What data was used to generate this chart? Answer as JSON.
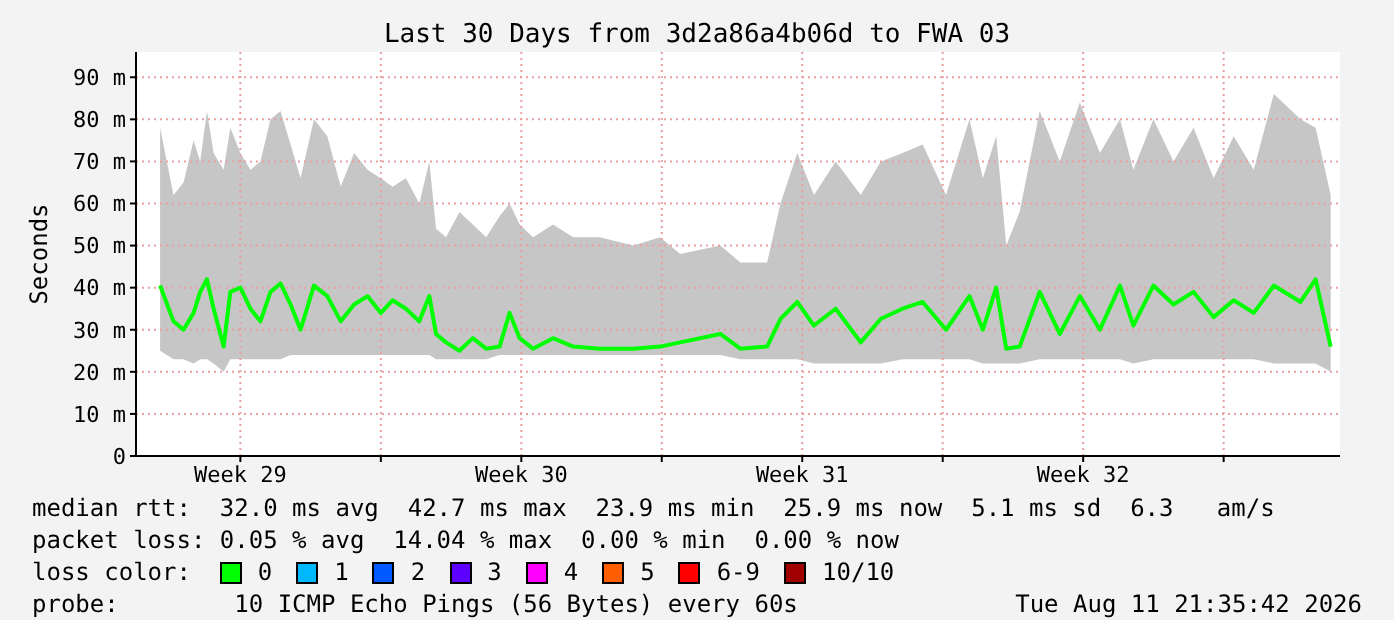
{
  "chart_data": {
    "type": "line",
    "title": "Last 30 Days from 3d2a86a4b06d to FWA 03",
    "ylabel": "Seconds",
    "x": [
      "2026-07-13T12:00",
      "2026-07-13T20:00",
      "2026-07-14T02:00",
      "2026-07-14T08:00",
      "2026-07-14T12:00",
      "2026-07-14T16:00",
      "2026-07-14T20:00",
      "2026-07-15T02:00",
      "2026-07-15T06:00",
      "2026-07-15T12:00",
      "2026-07-15T18:00",
      "2026-07-16T00:00",
      "2026-07-16T06:00",
      "2026-07-16T12:00",
      "2026-07-16T18:00",
      "2026-07-17T00:00",
      "2026-07-17T08:00",
      "2026-07-17T16:00",
      "2026-07-18T00:00",
      "2026-07-18T08:00",
      "2026-07-18T16:00",
      "2026-07-19T00:00",
      "2026-07-19T07:00",
      "2026-07-19T15:00",
      "2026-07-19T23:00",
      "2026-07-20T05:00",
      "2026-07-20T09:00",
      "2026-07-20T15:00",
      "2026-07-20T23:00",
      "2026-07-21T07:00",
      "2026-07-21T15:00",
      "2026-07-21T23:00",
      "2026-07-22T05:00",
      "2026-07-22T11:00",
      "2026-07-22T19:00",
      "2026-07-23T07:00",
      "2026-07-23T19:00",
      "2026-07-24T11:00",
      "2026-07-25T07:00",
      "2026-07-25T23:00",
      "2026-07-26T11:00",
      "2026-07-27T11:00",
      "2026-07-27T23:00",
      "2026-07-28T15:00",
      "2026-07-28T23:00",
      "2026-07-29T09:00",
      "2026-07-29T19:00",
      "2026-07-30T08:00",
      "2026-07-30T23:00",
      "2026-07-31T11:00",
      "2026-08-01T00:00",
      "2026-08-01T12:00",
      "2026-08-02T02:00",
      "2026-08-02T16:00",
      "2026-08-03T00:00",
      "2026-08-03T08:00",
      "2026-08-03T14:00",
      "2026-08-03T22:00",
      "2026-08-04T10:00",
      "2026-08-04T22:00",
      "2026-08-05T10:00",
      "2026-08-05T22:00",
      "2026-08-06T10:00",
      "2026-08-06T18:00",
      "2026-08-07T06:00",
      "2026-08-07T18:00",
      "2026-08-08T06:00",
      "2026-08-08T18:00",
      "2026-08-09T06:00",
      "2026-08-09T18:00",
      "2026-08-10T06:00",
      "2026-08-10T22:00",
      "2026-08-11T07:00",
      "2026-08-11T16:00"
    ],
    "series": [
      {
        "name": "0",
        "color": "#00ff00",
        "values": [
          40.5,
          32,
          30,
          34,
          39,
          42,
          35,
          26,
          39,
          40,
          35,
          32,
          39,
          41,
          36,
          30,
          40.5,
          38,
          32,
          36,
          38,
          34,
          37,
          35,
          32,
          38,
          29,
          27,
          25,
          28,
          25.5,
          26,
          34,
          28,
          25.5,
          28,
          26,
          25.5,
          25.5,
          26,
          27,
          29,
          25.5,
          26,
          32.6,
          36.6,
          31,
          35,
          27,
          32.6,
          35,
          36.6,
          30,
          38,
          30,
          40,
          25.5,
          26,
          39,
          29,
          38,
          30,
          40.5,
          31,
          40.5,
          36,
          39,
          33,
          37,
          34,
          40.5,
          36.6,
          42,
          26
        ],
        "lower": [
          25,
          23,
          23,
          22,
          23,
          23,
          22,
          20,
          23,
          23,
          23,
          23,
          23,
          23,
          24,
          24,
          24,
          24,
          24,
          24,
          24,
          24,
          24,
          24,
          24,
          24,
          23,
          23,
          23,
          23,
          23,
          24,
          24,
          24,
          24,
          24,
          24,
          24,
          24,
          24,
          24,
          24,
          23,
          23,
          23,
          23,
          22,
          22,
          22,
          22,
          23,
          23,
          23,
          23,
          22,
          22,
          22,
          22,
          23,
          23,
          23,
          23,
          23,
          22,
          23,
          23,
          23,
          23,
          23,
          23,
          22,
          22,
          22,
          20
        ],
        "upper": [
          78,
          62,
          65,
          75,
          70,
          82,
          72,
          68,
          78,
          72,
          68,
          70,
          80,
          82,
          74,
          66,
          80,
          76,
          64,
          72,
          68,
          66,
          64,
          66,
          60,
          70,
          54,
          52,
          58,
          55,
          52,
          57,
          60,
          55,
          52,
          55,
          52,
          52,
          50,
          52,
          48,
          50,
          46,
          46,
          60,
          72,
          62,
          70,
          62,
          70,
          72,
          74,
          62,
          80,
          66,
          76,
          50,
          58,
          82,
          70,
          84,
          72,
          80,
          68,
          80,
          70,
          78,
          66,
          76,
          68,
          86,
          80,
          78,
          62
        ]
      },
      {
        "name": "1",
        "color": "#00b8ff",
        "values": [
          null,
          null,
          null,
          null,
          null,
          null,
          null,
          null,
          null,
          null,
          null,
          null,
          null,
          null,
          null,
          null,
          null,
          null,
          null,
          null,
          null,
          null,
          null,
          null,
          null,
          null,
          null,
          null,
          null,
          null,
          null,
          null,
          null,
          null,
          null,
          null,
          null,
          null,
          null,
          null,
          null,
          null,
          null,
          null,
          null,
          null,
          null,
          null,
          null,
          null,
          null,
          null,
          null,
          null,
          null,
          null,
          null,
          null,
          null,
          null,
          null,
          null,
          null,
          null,
          null,
          null,
          null,
          null,
          null,
          null,
          null,
          null,
          null,
          null
        ]
      },
      {
        "name": "2",
        "color": "#0059ff",
        "values": [
          null,
          null,
          null,
          null,
          null,
          null,
          null,
          null,
          null,
          null,
          null,
          null,
          null,
          null,
          null,
          null,
          null,
          null,
          null,
          null,
          null,
          null,
          null,
          null,
          null,
          null,
          null,
          null,
          null,
          null,
          null,
          null,
          null,
          null,
          null,
          null,
          null,
          null,
          null,
          null,
          null,
          null,
          null,
          null,
          null,
          null,
          null,
          null,
          null,
          null,
          null,
          null,
          null,
          null,
          null,
          null,
          null,
          null,
          null,
          null,
          null,
          null,
          null,
          null,
          null,
          null,
          null,
          null,
          null,
          null,
          null,
          null,
          null,
          null
        ]
      },
      {
        "name": "3",
        "color": "#5e00ff",
        "values": [
          null,
          null,
          null,
          null,
          null,
          null,
          null,
          null,
          null,
          null,
          null,
          null,
          null,
          null,
          null,
          null,
          null,
          null,
          null,
          null,
          null,
          null,
          null,
          null,
          null,
          null,
          null,
          null,
          null,
          null,
          null,
          null,
          null,
          null,
          null,
          null,
          null,
          null,
          null,
          null,
          null,
          null,
          null,
          null,
          null,
          null,
          null,
          null,
          null,
          null,
          null,
          null,
          null,
          null,
          null,
          null,
          null,
          null,
          null,
          null,
          null,
          null,
          null,
          null,
          null,
          null,
          null,
          null,
          null,
          null,
          null,
          null,
          null,
          null
        ]
      },
      {
        "name": "4",
        "color": "#ff00ff",
        "values": [
          null,
          null,
          null,
          null,
          null,
          null,
          null,
          null,
          null,
          null,
          null,
          null,
          null,
          null,
          null,
          null,
          null,
          null,
          null,
          null,
          null,
          null,
          null,
          null,
          null,
          null,
          null,
          null,
          null,
          null,
          null,
          null,
          null,
          null,
          null,
          null,
          null,
          null,
          null,
          null,
          null,
          null,
          null,
          null,
          null,
          null,
          null,
          null,
          null,
          null,
          null,
          null,
          null,
          null,
          null,
          null,
          null,
          null,
          null,
          null,
          null,
          null,
          null,
          null,
          null,
          null,
          null,
          null,
          null,
          null,
          null,
          null,
          null,
          null
        ]
      },
      {
        "name": "5",
        "color": "#ff5e00",
        "values": [
          null,
          null,
          null,
          null,
          null,
          null,
          null,
          null,
          null,
          null,
          null,
          null,
          null,
          null,
          null,
          null,
          null,
          null,
          null,
          null,
          null,
          null,
          null,
          null,
          null,
          null,
          null,
          null,
          null,
          null,
          null,
          null,
          null,
          null,
          null,
          null,
          null,
          null,
          null,
          null,
          null,
          null,
          null,
          null,
          null,
          null,
          null,
          null,
          null,
          null,
          null,
          null,
          null,
          null,
          null,
          null,
          null,
          null,
          null,
          null,
          null,
          null,
          null,
          null,
          null,
          null,
          null,
          null,
          null,
          null,
          null,
          null,
          null,
          null
        ]
      },
      {
        "name": "6-9",
        "color": "#ff0000",
        "values": [
          null,
          null,
          null,
          null,
          null,
          null,
          null,
          null,
          null,
          null,
          null,
          null,
          null,
          null,
          null,
          null,
          null,
          null,
          null,
          null,
          null,
          null,
          null,
          null,
          null,
          null,
          null,
          null,
          null,
          null,
          null,
          null,
          null,
          null,
          null,
          null,
          null,
          null,
          null,
          null,
          null,
          null,
          null,
          null,
          null,
          null,
          null,
          null,
          null,
          null,
          null,
          null,
          null,
          null,
          null,
          null,
          null,
          null,
          null,
          null,
          null,
          null,
          null,
          null,
          null,
          null,
          null,
          null,
          null,
          null,
          null,
          null,
          null,
          null
        ]
      },
      {
        "name": "10/10",
        "color": "#a10000",
        "values": [
          null,
          null,
          null,
          null,
          null,
          null,
          null,
          null,
          null,
          null,
          null,
          null,
          null,
          null,
          null,
          null,
          null,
          null,
          null,
          null,
          null,
          null,
          null,
          null,
          null,
          null,
          null,
          null,
          null,
          null,
          null,
          null,
          null,
          null,
          null,
          null,
          null,
          null,
          null,
          null,
          null,
          null,
          null,
          null,
          null,
          null,
          null,
          null,
          null,
          null,
          null,
          null,
          null,
          null,
          null,
          null,
          null,
          null,
          null,
          null,
          null,
          null,
          null,
          null,
          null,
          null,
          null,
          null,
          null,
          null,
          null,
          null,
          null,
          null
        ]
      }
    ],
    "legend": "bottom",
    "legend_title": "loss color:",
    "marker": "none",
    "line_style": "solid",
    "grid": true,
    "xlim": [
      "2026-07-12T21:35",
      "2026-08-11T21:35"
    ],
    "xticks": [
      {
        "value": "2026-07-15T12:00",
        "label": "Week 29"
      },
      {
        "value": "2026-07-19T00:00",
        "label": null
      },
      {
        "value": "2026-07-22T12:00",
        "label": "Week 30"
      },
      {
        "value": "2026-07-26T00:00",
        "label": null
      },
      {
        "value": "2026-07-29T12:00",
        "label": "Week 31"
      },
      {
        "value": "2026-08-02T00:00",
        "label": null
      },
      {
        "value": "2026-08-05T12:00",
        "label": "Week 32"
      },
      {
        "value": "2026-08-09T00:00",
        "label": null
      }
    ],
    "ylim": [
      0,
      96
    ],
    "yticks": [
      0,
      {
        "value": 10,
        "label": "10 m"
      },
      {
        "value": 20,
        "label": "20 m"
      },
      {
        "value": 30,
        "label": "30 m"
      },
      {
        "value": 40,
        "label": "40 m"
      },
      {
        "value": 50,
        "label": "50 m"
      },
      {
        "value": 60,
        "label": "60 m"
      },
      {
        "value": 70,
        "label": "70 m"
      },
      {
        "value": 80,
        "label": "80 m"
      },
      {
        "value": 90,
        "label": "90 m"
      }
    ],
    "annotations": [
      "median rtt:  32.0 ms avg  42.7 ms max  23.9 ms min  25.9 ms now  5.1 ms sd  6.3   am/s",
      "packet loss: 0.05 % avg  14.04 % max  0.00 % min  0.00 % now",
      "probe:        10 ICMP Echo Pings (56 Bytes) every 60s",
      "Tue Aug 11 21:35:42 2026"
    ]
  }
}
